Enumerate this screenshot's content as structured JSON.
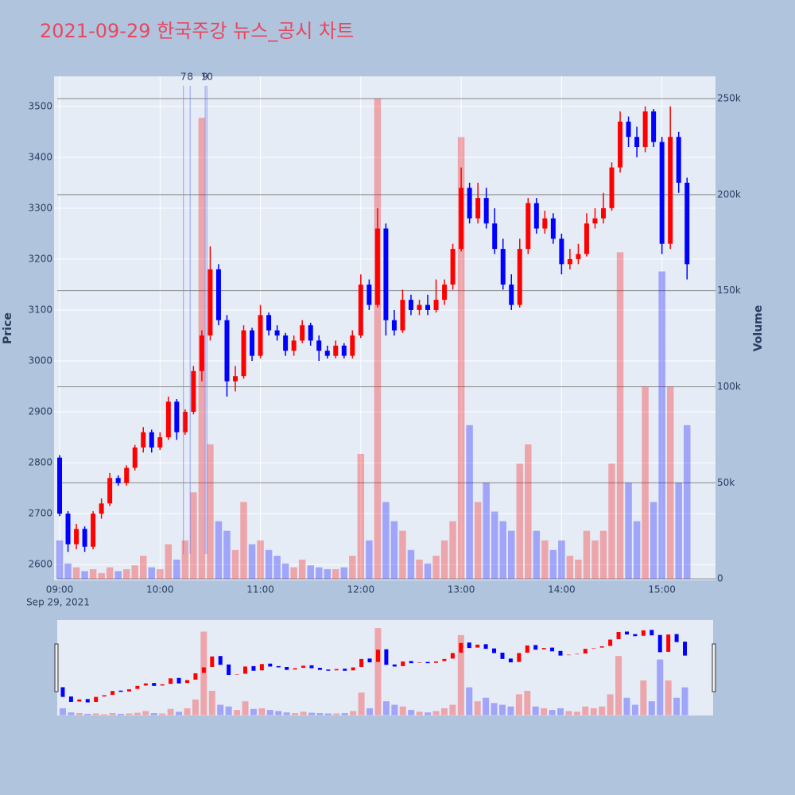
{
  "chart_data": {
    "type": "candlestick",
    "title": "2021-09-29 한국주강 뉴스_공시 차트",
    "y_label": "Price",
    "y2_label": "Volume",
    "x_date_label": "Sep 29, 2021",
    "up_color": "#ff0000",
    "down_color": "#0000ff",
    "x": [
      "2021-09-29 09:00",
      "2021-09-29 09:05",
      "2021-09-29 09:10",
      "2021-09-29 09:15",
      "2021-09-29 09:20",
      "2021-09-29 09:25",
      "2021-09-29 09:30",
      "2021-09-29 09:35",
      "2021-09-29 09:40",
      "2021-09-29 09:45",
      "2021-09-29 09:50",
      "2021-09-29 09:55",
      "2021-09-29 10:00",
      "2021-09-29 10:05",
      "2021-09-29 10:10",
      "2021-09-29 10:15",
      "2021-09-29 10:20",
      "2021-09-29 10:25",
      "2021-09-29 10:30",
      "2021-09-29 10:35",
      "2021-09-29 10:40",
      "2021-09-29 10:45",
      "2021-09-29 10:50",
      "2021-09-29 10:55",
      "2021-09-29 11:00",
      "2021-09-29 11:05",
      "2021-09-29 11:10",
      "2021-09-29 11:15",
      "2021-09-29 11:20",
      "2021-09-29 11:25",
      "2021-09-29 11:30",
      "2021-09-29 11:35",
      "2021-09-29 11:40",
      "2021-09-29 11:45",
      "2021-09-29 11:50",
      "2021-09-29 11:55",
      "2021-09-29 12:00",
      "2021-09-29 12:05",
      "2021-09-29 12:10",
      "2021-09-29 12:15",
      "2021-09-29 12:20",
      "2021-09-29 12:25",
      "2021-09-29 12:30",
      "2021-09-29 12:35",
      "2021-09-29 12:40",
      "2021-09-29 12:45",
      "2021-09-29 12:50",
      "2021-09-29 12:55",
      "2021-09-29 13:00",
      "2021-09-29 13:05",
      "2021-09-29 13:10",
      "2021-09-29 13:15",
      "2021-09-29 13:20",
      "2021-09-29 13:25",
      "2021-09-29 13:30",
      "2021-09-29 13:35",
      "2021-09-29 13:40",
      "2021-09-29 13:45",
      "2021-09-29 13:50",
      "2021-09-29 13:55",
      "2021-09-29 14:00",
      "2021-09-29 14:05",
      "2021-09-29 14:10",
      "2021-09-29 14:15",
      "2021-09-29 14:20",
      "2021-09-29 14:25",
      "2021-09-29 14:30",
      "2021-09-29 14:35",
      "2021-09-29 14:40",
      "2021-09-29 14:45",
      "2021-09-29 14:50",
      "2021-09-29 14:55",
      "2021-09-29 15:00",
      "2021-09-29 15:05",
      "2021-09-29 15:10",
      "2021-09-29 15:15"
    ],
    "open": [
      2810,
      2700,
      2640,
      2670,
      2635,
      2700,
      2720,
      2770,
      2760,
      2790,
      2830,
      2860,
      2830,
      2850,
      2920,
      2860,
      2900,
      2980,
      3050,
      3180,
      3080,
      2960,
      2970,
      3060,
      3010,
      3090,
      3060,
      3050,
      3020,
      3040,
      3070,
      3040,
      3020,
      3010,
      3030,
      3010,
      3050,
      3150,
      3110,
      3260,
      3080,
      3060,
      3120,
      3100,
      3110,
      3100,
      3120,
      3150,
      3220,
      3340,
      3280,
      3320,
      3270,
      3220,
      3150,
      3110,
      3220,
      3310,
      3260,
      3280,
      3240,
      3190,
      3200,
      3210,
      3270,
      3280,
      3300,
      3380,
      3470,
      3440,
      3420,
      3490,
      3430,
      3230,
      3440,
      3350
    ],
    "high": [
      2815,
      2705,
      2680,
      2675,
      2705,
      2730,
      2780,
      2775,
      2795,
      2835,
      2870,
      2865,
      2860,
      2930,
      2925,
      2905,
      2990,
      3060,
      3225,
      3190,
      3090,
      2990,
      3070,
      3065,
      3110,
      3095,
      3070,
      3055,
      3050,
      3080,
      3075,
      3050,
      3030,
      3040,
      3035,
      3060,
      3170,
      3160,
      3300,
      3270,
      3100,
      3140,
      3130,
      3120,
      3130,
      3160,
      3160,
      3230,
      3380,
      3350,
      3350,
      3340,
      3300,
      3240,
      3170,
      3240,
      3320,
      3320,
      3295,
      3290,
      3250,
      3220,
      3230,
      3290,
      3300,
      3330,
      3390,
      3490,
      3480,
      3460,
      3500,
      3495,
      3440,
      3500,
      3450,
      3360
    ],
    "low": [
      2695,
      2625,
      2630,
      2625,
      2630,
      2690,
      2715,
      2755,
      2755,
      2785,
      2820,
      2820,
      2825,
      2845,
      2845,
      2855,
      2895,
      2960,
      3040,
      3070,
      2930,
      2940,
      2965,
      3000,
      3005,
      3050,
      3040,
      3010,
      3010,
      3035,
      3030,
      3000,
      3005,
      3005,
      3005,
      3005,
      3045,
      3100,
      3105,
      3050,
      3050,
      3055,
      3090,
      3090,
      3090,
      3095,
      3110,
      3140,
      3215,
      3270,
      3270,
      3260,
      3210,
      3140,
      3100,
      3105,
      3210,
      3250,
      3250,
      3230,
      3170,
      3180,
      3190,
      3205,
      3260,
      3270,
      3295,
      3370,
      3420,
      3400,
      3410,
      3420,
      3210,
      3220,
      3330,
      3160
    ],
    "close": [
      2700,
      2640,
      2670,
      2635,
      2700,
      2720,
      2770,
      2760,
      2790,
      2830,
      2860,
      2830,
      2850,
      2920,
      2860,
      2900,
      2980,
      3050,
      3180,
      3080,
      2960,
      2970,
      3060,
      3010,
      3090,
      3060,
      3050,
      3020,
      3040,
      3070,
      3040,
      3020,
      3010,
      3030,
      3010,
      3050,
      3150,
      3110,
      3260,
      3080,
      3060,
      3120,
      3100,
      3110,
      3100,
      3120,
      3150,
      3220,
      3340,
      3280,
      3320,
      3270,
      3220,
      3150,
      3110,
      3220,
      3310,
      3260,
      3280,
      3240,
      3190,
      3200,
      3210,
      3270,
      3280,
      3300,
      3380,
      3470,
      3440,
      3420,
      3490,
      3430,
      3230,
      3440,
      3350,
      3190
    ],
    "volume": [
      20000,
      8000,
      6000,
      4000,
      5000,
      3000,
      6000,
      4000,
      5000,
      7000,
      12000,
      6000,
      5000,
      18000,
      10000,
      20000,
      45000,
      240000,
      70000,
      30000,
      25000,
      15000,
      40000,
      18000,
      20000,
      15000,
      12000,
      8000,
      6000,
      10000,
      7000,
      6000,
      5000,
      5000,
      6000,
      12000,
      65000,
      20000,
      250000,
      40000,
      30000,
      25000,
      15000,
      10000,
      8000,
      12000,
      20000,
      30000,
      230000,
      80000,
      40000,
      50000,
      35000,
      30000,
      25000,
      60000,
      70000,
      25000,
      20000,
      15000,
      20000,
      12000,
      10000,
      25000,
      20000,
      25000,
      60000,
      170000,
      50000,
      30000,
      100000,
      40000,
      160000,
      100000,
      50000,
      80000
    ],
    "xlim": [
      "2021-09-29 08:56:40",
      "2021-09-29 15:32"
    ],
    "xticks": [
      {
        "value": "2021-09-29 09:00",
        "label": "09:00"
      },
      {
        "value": "2021-09-29 10:00",
        "label": "10:00"
      },
      {
        "value": "2021-09-29 11:00",
        "label": "11:00"
      },
      {
        "value": "2021-09-29 12:00",
        "label": "12:00"
      },
      {
        "value": "2021-09-29 13:00",
        "label": "13:00"
      },
      {
        "value": "2021-09-29 14:00",
        "label": "14:00"
      },
      {
        "value": "2021-09-29 15:00",
        "label": "15:00"
      }
    ],
    "ylim": [
      2569,
      3559
    ],
    "yticks": [
      2600,
      2700,
      2800,
      2900,
      3000,
      3100,
      3200,
      3300,
      3400,
      3500
    ],
    "y2lim": [
      -800,
      261600
    ],
    "y2ticks": [
      {
        "value": 0,
        "label": "0"
      },
      {
        "value": 50000,
        "label": "50k"
      },
      {
        "value": 100000,
        "label": "100k"
      },
      {
        "value": 150000,
        "label": "150k"
      },
      {
        "value": 200000,
        "label": "200k"
      },
      {
        "value": 250000,
        "label": "250k"
      }
    ],
    "annotations": [
      {
        "x": "2021-09-29 10:14",
        "text": "7"
      },
      {
        "x": "2021-09-29 10:18",
        "text": "8"
      },
      {
        "x": "2021-09-29 10:27",
        "text": "9"
      },
      {
        "x": "2021-09-29 10:28",
        "text": "10"
      }
    ]
  }
}
